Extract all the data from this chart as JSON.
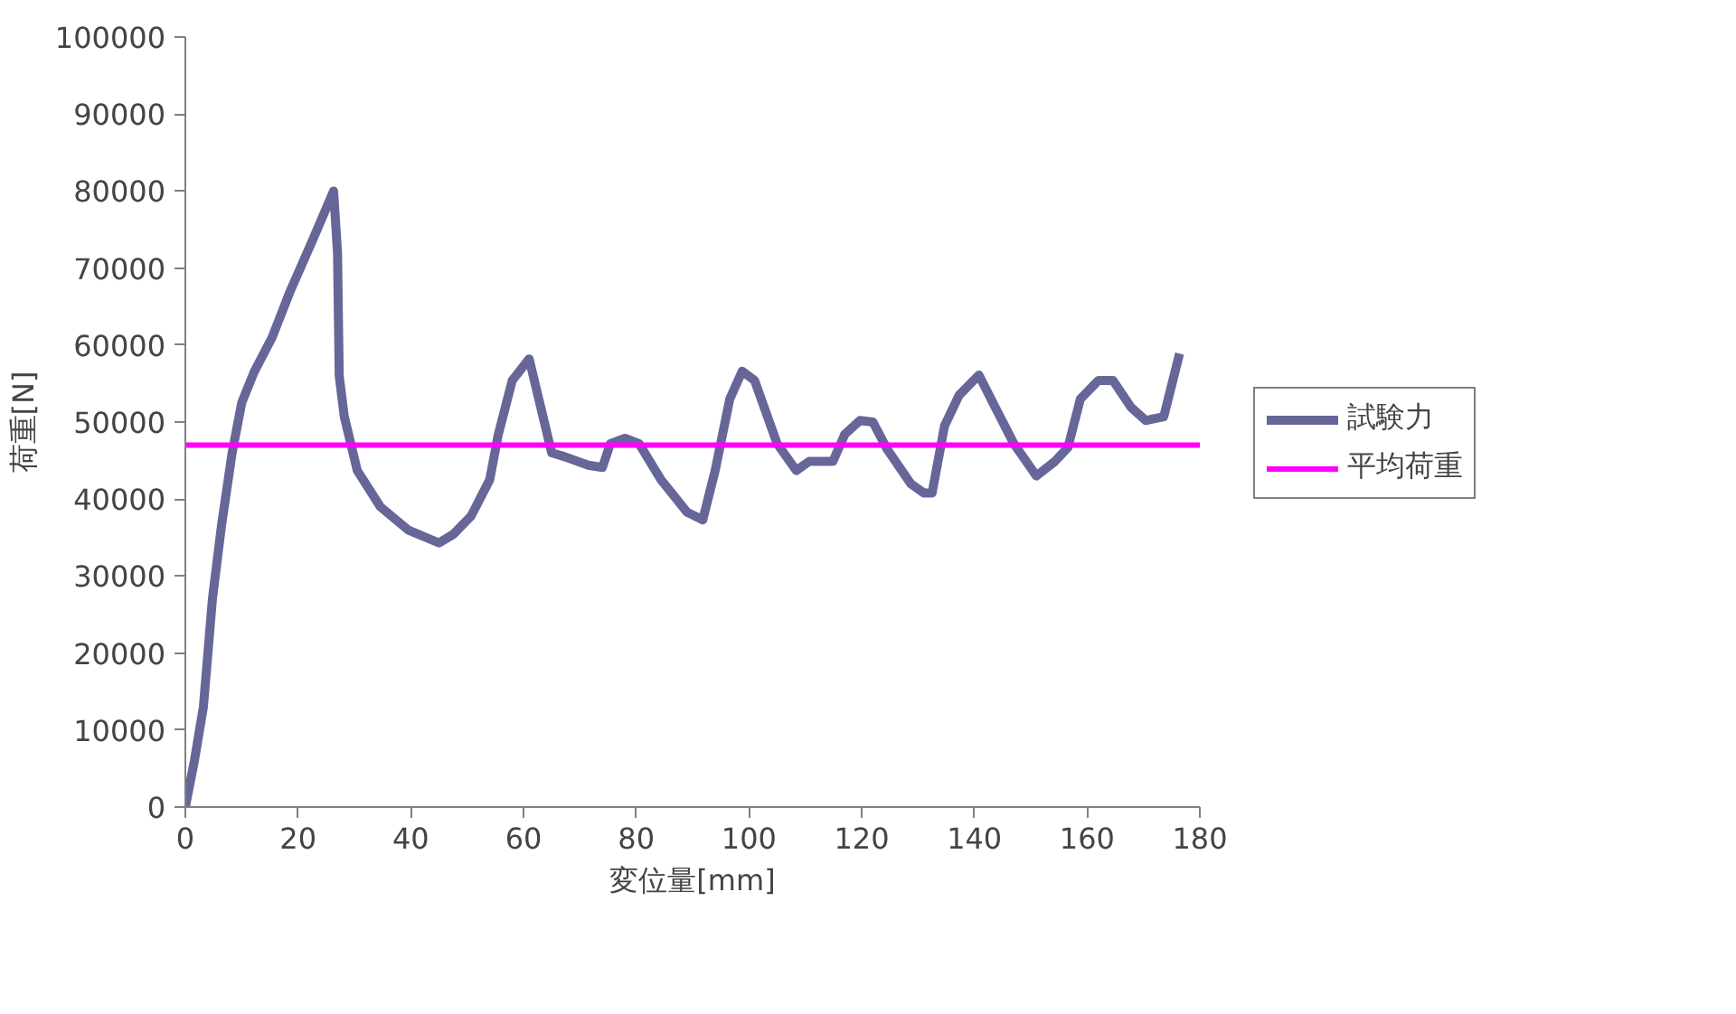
{
  "chart_data": {
    "type": "line",
    "xlabel": "変位量[mm]",
    "ylabel": "荷重[N]",
    "xlim": [
      0,
      180
    ],
    "ylim": [
      0,
      100000
    ],
    "xticks": [
      0,
      20,
      40,
      60,
      80,
      100,
      120,
      140,
      160,
      180
    ],
    "yticks": [
      0,
      10000,
      20000,
      30000,
      40000,
      50000,
      60000,
      70000,
      80000,
      90000,
      100000
    ],
    "grid": false,
    "legend": "right",
    "line_style": "solid",
    "marker": "none",
    "series": [
      {
        "name": "試験力",
        "color": "#666699",
        "x": [
          0,
          1.6,
          3.2,
          4.8,
          6.4,
          8.3,
          10,
          12.2,
          15.4,
          18.6,
          22.8,
          26.3,
          27,
          27.3,
          28.2,
          30.5,
          34.6,
          39.5,
          45,
          47.5,
          50.7,
          54,
          55.5,
          58,
          61,
          65,
          67.3,
          71.5,
          74,
          75.4,
          78,
          80.5,
          84.4,
          89,
          91.8,
          94,
          96.6,
          98.8,
          101,
          105,
          108.4,
          110.7,
          114.9,
          117,
          119.7,
          122,
          124.5,
          128.7,
          131,
          132.5,
          134.7,
          137.3,
          140.8,
          143.7,
          147,
          151,
          154.3,
          156.6,
          158.8,
          162,
          164.6,
          167.8,
          170.4,
          173.6,
          174.8,
          176.4
        ],
        "values": [
          0,
          6000,
          13000,
          27000,
          36500,
          46000,
          52500,
          56500,
          61000,
          67000,
          74000,
          80000,
          72000,
          56000,
          50700,
          43700,
          39000,
          36000,
          34300,
          35400,
          37800,
          42500,
          48300,
          55400,
          58200,
          46000,
          45500,
          44400,
          44100,
          47200,
          47900,
          47200,
          42500,
          38300,
          37300,
          43700,
          53000,
          56600,
          55400,
          47200,
          43700,
          44900,
          44900,
          48400,
          50200,
          50000,
          46500,
          42000,
          40800,
          40800,
          49500,
          53500,
          56100,
          51900,
          47200,
          43000,
          44900,
          46700,
          53000,
          55400,
          55400,
          51900,
          50200,
          50700,
          54200,
          58900
        ]
      },
      {
        "name": "平均荷重",
        "color": "#ff00ff",
        "x": [
          0,
          180
        ],
        "values": [
          47000,
          47000
        ]
      }
    ]
  }
}
